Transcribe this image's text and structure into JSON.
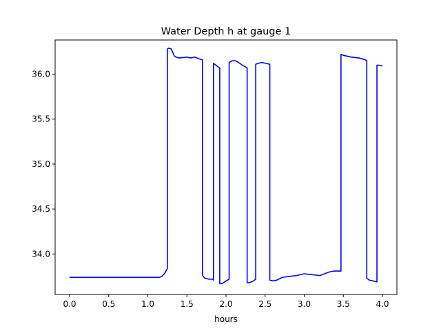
{
  "chart_data": {
    "type": "line",
    "title": "Water Depth h at gauge 1",
    "xlabel": "hours",
    "ylabel": "",
    "xlim": [
      -0.185,
      4.185
    ],
    "ylim": [
      33.55,
      36.38
    ],
    "xticks": [
      0.0,
      0.5,
      1.0,
      1.5,
      2.0,
      2.5,
      3.0,
      3.5,
      4.0
    ],
    "xtick_labels": [
      "0.0",
      "0.5",
      "1.0",
      "1.5",
      "2.0",
      "2.5",
      "3.0",
      "3.5",
      "4.0"
    ],
    "yticks": [
      34.0,
      34.5,
      35.0,
      35.5,
      36.0
    ],
    "ytick_labels": [
      "34.0",
      "34.5",
      "35.0",
      "35.5",
      "36.0"
    ],
    "grid": false,
    "series": [
      {
        "color": "#0000ff",
        "x": [
          0.0,
          0.5,
          1.0,
          1.15,
          1.18,
          1.22,
          1.25,
          1.25,
          1.27,
          1.3,
          1.32,
          1.34,
          1.36,
          1.4,
          1.5,
          1.55,
          1.6,
          1.63,
          1.66,
          1.7,
          1.7,
          1.73,
          1.78,
          1.83,
          1.84,
          1.84,
          1.87,
          1.9,
          1.92,
          1.92,
          1.95,
          2.0,
          2.04,
          2.04,
          2.08,
          2.12,
          2.16,
          2.21,
          2.27,
          2.27,
          2.3,
          2.35,
          2.38,
          2.38,
          2.41,
          2.46,
          2.51,
          2.56,
          2.56,
          2.6,
          2.65,
          2.72,
          2.8,
          2.9,
          3.0,
          3.1,
          3.2,
          3.26,
          3.32,
          3.38,
          3.45,
          3.47,
          3.47,
          3.5,
          3.6,
          3.7,
          3.78,
          3.8,
          3.8,
          3.83,
          3.88,
          3.93,
          3.93,
          3.96,
          4.0
        ],
        "y": [
          33.74,
          33.74,
          33.74,
          33.74,
          33.75,
          33.79,
          33.84,
          36.28,
          36.29,
          36.28,
          36.24,
          36.2,
          36.19,
          36.18,
          36.19,
          36.18,
          36.19,
          36.18,
          36.17,
          36.16,
          33.76,
          33.73,
          33.72,
          33.72,
          33.71,
          36.12,
          36.1,
          36.08,
          36.07,
          33.67,
          33.67,
          33.7,
          33.72,
          36.13,
          36.15,
          36.15,
          36.13,
          36.1,
          36.07,
          33.68,
          33.68,
          33.7,
          33.72,
          36.11,
          36.12,
          36.13,
          36.12,
          36.11,
          33.71,
          33.7,
          33.71,
          33.74,
          33.75,
          33.76,
          33.78,
          33.77,
          33.76,
          33.78,
          33.8,
          33.81,
          33.81,
          33.81,
          36.22,
          36.21,
          36.19,
          36.18,
          36.16,
          36.15,
          33.73,
          33.71,
          33.7,
          33.69,
          36.1,
          36.1,
          36.09
        ]
      }
    ]
  }
}
